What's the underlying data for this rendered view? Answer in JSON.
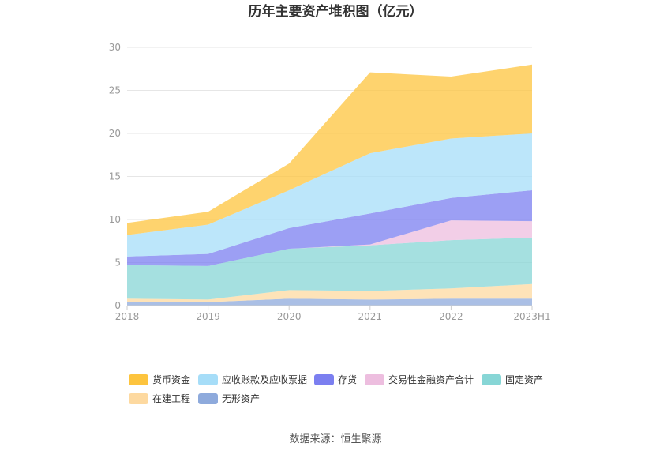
{
  "chart_data": {
    "type": "area",
    "stacked": true,
    "title": "历年主要资产堆积图（亿元）",
    "source": "数据来源：恒生聚源",
    "categories": [
      "2018",
      "2019",
      "2020",
      "2021",
      "2022",
      "2023H1"
    ],
    "ylim": [
      0,
      30
    ],
    "yticks": [
      "0",
      "5",
      "10",
      "15",
      "20",
      "25",
      "30"
    ],
    "grid": true,
    "legend_position": "bottom",
    "series": [
      {
        "name": "无形资产",
        "color": "#8eaadc",
        "values": [
          0.4,
          0.4,
          0.8,
          0.7,
          0.8,
          0.8
        ]
      },
      {
        "name": "在建工程",
        "color": "#fdd9a0",
        "values": [
          0.4,
          0.3,
          1.0,
          1.0,
          1.2,
          1.7
        ]
      },
      {
        "name": "固定资产",
        "color": "#87d6d6",
        "values": [
          3.9,
          3.9,
          4.8,
          5.3,
          5.6,
          5.4
        ]
      },
      {
        "name": "交易性金融资产合计",
        "color": "#edbedf",
        "values": [
          0,
          0,
          0,
          0.1,
          2.3,
          1.9
        ]
      },
      {
        "name": "存货",
        "color": "#7b7ff0",
        "values": [
          1.0,
          1.4,
          2.4,
          3.6,
          2.6,
          3.6
        ]
      },
      {
        "name": "应收账款及应收票据",
        "color": "#a6ddf8",
        "values": [
          2.5,
          3.4,
          4.4,
          7.0,
          6.9,
          6.6
        ]
      },
      {
        "name": "货币资金",
        "color": "#fdc43e",
        "values": [
          1.4,
          1.5,
          3.1,
          9.4,
          7.2,
          8.0
        ]
      }
    ],
    "legend_order": [
      "货币资金",
      "应收账款及应收票据",
      "存货",
      "交易性金融资产合计",
      "固定资产",
      "在建工程",
      "无形资产"
    ]
  }
}
